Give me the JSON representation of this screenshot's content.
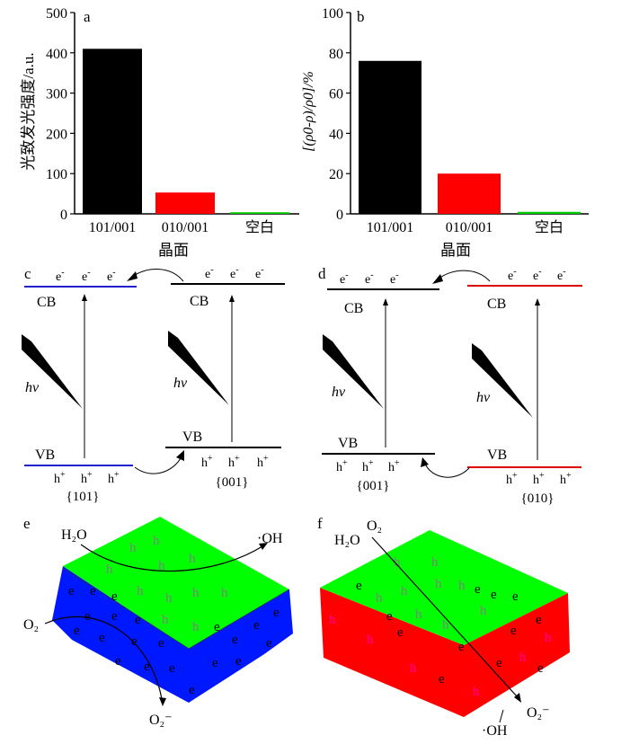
{
  "chart_data": [
    {
      "type": "bar",
      "panel_label": "a",
      "title": "",
      "ylabel": "光致发光强度/a.u.",
      "xlabel": "晶面",
      "categories": [
        "101/001",
        "010/001",
        "空白"
      ],
      "values": [
        410,
        53,
        4
      ],
      "ylim": [
        0,
        500
      ],
      "yticks": [
        "0",
        "100",
        "200",
        "300",
        "400",
        "500"
      ],
      "bar_colors": [
        "#000000",
        "#ff0000",
        "#00cc00"
      ]
    },
    {
      "type": "bar",
      "panel_label": "b",
      "title": "",
      "ylabel": "[(ρ0-ρ)/ρ0]/%",
      "xlabel": "晶面",
      "categories": [
        "101/001",
        "010/001",
        "空白"
      ],
      "values": [
        76,
        20,
        1
      ],
      "ylim": [
        0,
        100
      ],
      "yticks": [
        "0",
        "20",
        "40",
        "60",
        "80",
        "100"
      ],
      "bar_colors": [
        "#000000",
        "#ff0000",
        "#00cc00"
      ]
    }
  ],
  "energy": {
    "c": {
      "label": "c",
      "cb": "CB",
      "vb": "VB",
      "hv": "hv",
      "electron": "e",
      "hole": "h",
      "facet_left": "{101}",
      "facet_right": "{001}",
      "left_color": "#2020cc",
      "right_color": "#000000"
    },
    "d": {
      "label": "d",
      "cb": "CB",
      "vb": "VB",
      "hv": "hv",
      "electron": "e",
      "hole": "h",
      "facet_left": "{001}",
      "facet_right": "{010}",
      "left_color": "#000000",
      "right_color": "#dd0000"
    }
  },
  "crystals": {
    "e": {
      "label": "e",
      "top_color": "#00ff00",
      "side_color": "#0018ff",
      "h2o": "H₂O",
      "oh": "·OH",
      "o2": "O₂",
      "o2_minus": "O₂⁻",
      "electron": "e",
      "hole": "h"
    },
    "f": {
      "label": "f",
      "top_color": "#00ff00",
      "side_color": "#ff0000",
      "h2o": "H₂O",
      "oh": "·OH",
      "o2": "O₂",
      "o2_minus": "O₂⁻",
      "electron": "e",
      "hole": "h"
    }
  }
}
